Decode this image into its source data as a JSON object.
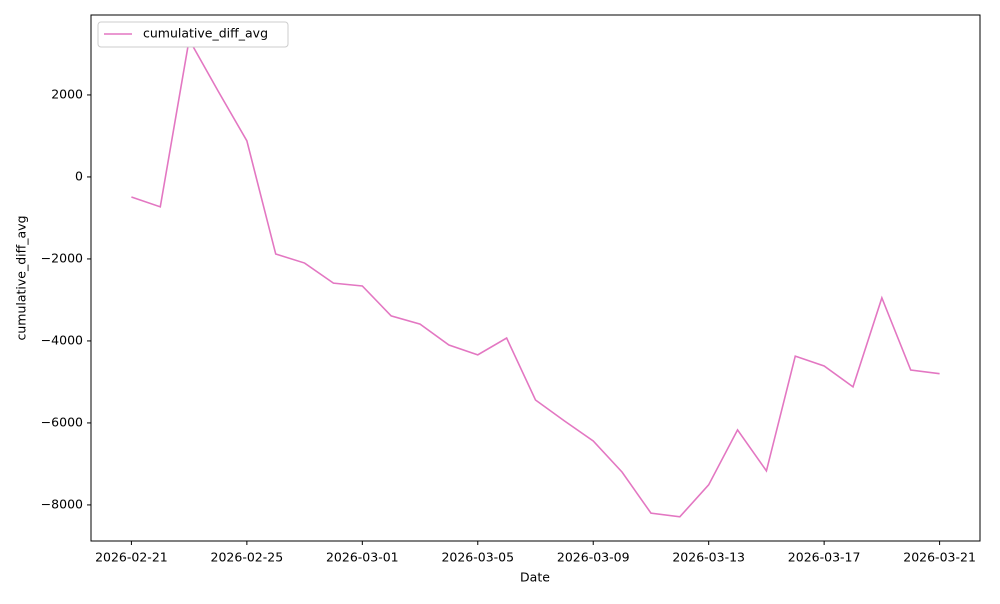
{
  "chart_data": {
    "type": "line",
    "x_label": "Date",
    "y_label": "cumulative_diff_avg",
    "x": [
      "2026-02-21",
      "2026-02-22",
      "2026-02-23",
      "2026-02-24",
      "2026-02-25",
      "2026-02-26",
      "2026-02-27",
      "2026-02-28",
      "2026-03-01",
      "2026-03-02",
      "2026-03-03",
      "2026-03-04",
      "2026-03-05",
      "2026-03-06",
      "2026-03-07",
      "2026-03-08",
      "2026-03-09",
      "2026-03-10",
      "2026-03-11",
      "2026-03-12",
      "2026-03-13",
      "2026-03-14",
      "2026-03-15",
      "2026-03-16",
      "2026-03-17",
      "2026-03-18",
      "2026-03-19",
      "2026-03-20",
      "2026-03-21"
    ],
    "series": [
      {
        "name": "cumulative_diff_avg",
        "color": "#e377c2",
        "values": [
          -490,
          -730,
          3350,
          2100,
          880,
          -1880,
          -2100,
          -2590,
          -2660,
          -3390,
          -3590,
          -4100,
          -4340,
          -3930,
          -5440,
          -5950,
          -6440,
          -7200,
          -8200,
          -8290,
          -7510,
          -6170,
          -7170,
          -4370,
          -4610,
          -5120,
          -2950,
          -4710,
          -4800
        ]
      }
    ],
    "xlim": [
      "2026-02-19T14:24",
      "2026-03-22T09:36"
    ],
    "xticks": [
      "2026-02-21",
      "2026-02-25",
      "2026-03-01",
      "2026-03-05",
      "2026-03-09",
      "2026-03-13",
      "2026-03-17",
      "2026-03-21"
    ],
    "ylim": [
      -8880,
      3950
    ],
    "yticks": [
      {
        "value": -8000,
        "label": "−8000"
      },
      {
        "value": -6000,
        "label": "−6000"
      },
      {
        "value": -4000,
        "label": "−4000"
      },
      {
        "value": -2000,
        "label": "−2000"
      },
      0,
      2000
    ],
    "grid": false,
    "legend": "upper-left"
  }
}
